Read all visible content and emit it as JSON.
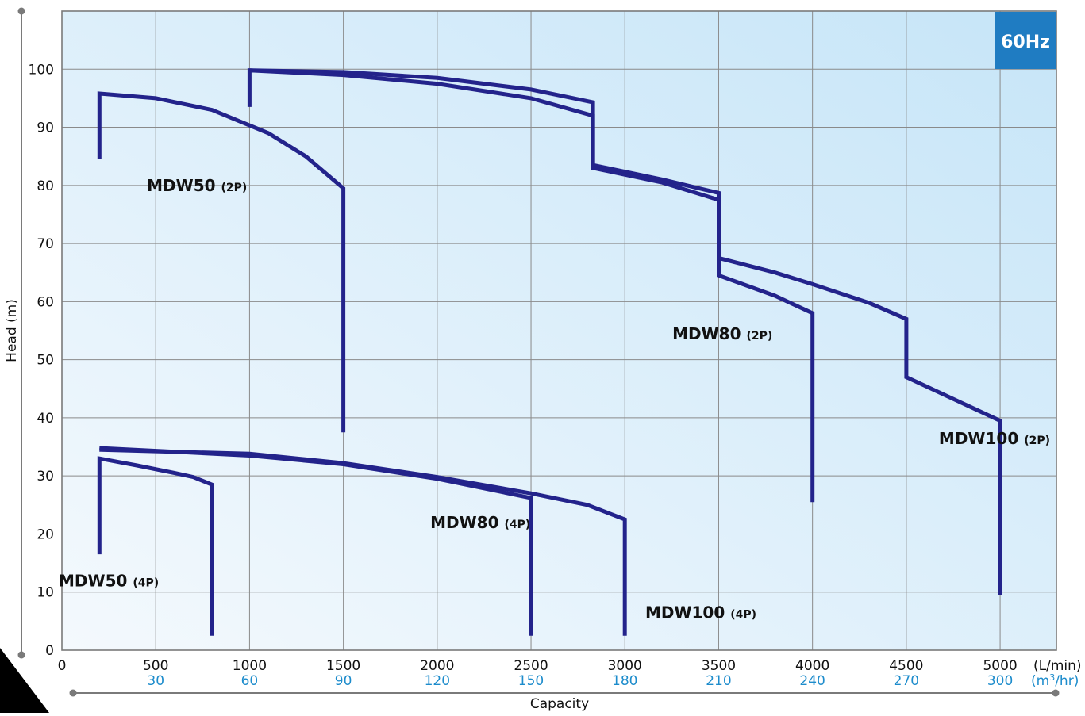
{
  "chart_data": {
    "type": "line",
    "badge": "60Hz",
    "xlabel": "Capacity",
    "ylabel": "Head (m)",
    "x_unit": "(L/min)",
    "x2_unit_prefix": "(m",
    "x2_unit_sup": "3",
    "x2_unit_suffix": "/hr)",
    "xlim": [
      0,
      5300
    ],
    "ylim": [
      0,
      110
    ],
    "x_ticks": [
      0,
      500,
      1000,
      1500,
      2000,
      2500,
      3000,
      3500,
      4000,
      4500,
      5000
    ],
    "x_tick_labels": [
      "0",
      "500",
      "1000",
      "1500",
      "2000",
      "2500",
      "3000",
      "3500",
      "4000",
      "4500",
      "5000"
    ],
    "x2_tick_labels": [
      "",
      "30",
      "60",
      "90",
      "120",
      "150",
      "180",
      "210",
      "240",
      "270",
      "300"
    ],
    "y_ticks": [
      0,
      10,
      20,
      30,
      40,
      50,
      60,
      70,
      80,
      90,
      100
    ],
    "y_tick_labels": [
      "0",
      "10",
      "20",
      "30",
      "40",
      "50",
      "60",
      "70",
      "80",
      "90",
      "100"
    ],
    "grid": true,
    "colors": {
      "curve": "#23238b",
      "grid": "#8a8a8a",
      "badge": "#1f7cc2",
      "x2_text": "#1d8ccc",
      "bg_left": "#f4f9fd",
      "bg_right": "#c6e5f8"
    },
    "series": [
      {
        "name": "MDW50",
        "suffix": "(2P)",
        "label_at": [
          720,
          79
        ],
        "points": [
          [
            200,
            84.5
          ],
          [
            200,
            95.8
          ],
          [
            500,
            95
          ],
          [
            800,
            93
          ],
          [
            1100,
            89
          ],
          [
            1300,
            85
          ],
          [
            1500,
            79.5
          ],
          [
            1500,
            37.5
          ]
        ]
      },
      {
        "name": "MDW50",
        "suffix": "(4P)",
        "label_at": [
          250,
          11
        ],
        "points": [
          [
            200,
            16.5
          ],
          [
            200,
            33
          ],
          [
            400,
            31.8
          ],
          [
            600,
            30.5
          ],
          [
            700,
            29.8
          ],
          [
            800,
            28.5
          ],
          [
            800,
            2.5
          ]
        ]
      },
      {
        "name": "MDW80",
        "suffix": "(2P)",
        "label_at": [
          3520,
          53.5
        ],
        "points": [
          [
            1000,
            93.5
          ],
          [
            1000,
            99.8
          ],
          [
            1500,
            99.5
          ],
          [
            2000,
            98.5
          ],
          [
            2500,
            96.5
          ],
          [
            2830,
            94.3
          ],
          [
            2830,
            83.5
          ],
          [
            3200,
            81
          ],
          [
            3500,
            78.7
          ],
          [
            3500,
            64.5
          ],
          [
            3800,
            61
          ],
          [
            4000,
            58
          ],
          [
            4000,
            25.5
          ]
        ]
      },
      {
        "name": "MDW80",
        "suffix": "(4P)",
        "label_at": [
          2230,
          21
        ],
        "points": [
          [
            200,
            34.8
          ],
          [
            1000,
            33.5
          ],
          [
            1500,
            32
          ],
          [
            2000,
            29.5
          ],
          [
            2500,
            26.2
          ],
          [
            2500,
            2.5
          ]
        ]
      },
      {
        "name": "MDW100",
        "suffix": "(2P)",
        "label_at": [
          4970,
          35.5
        ],
        "points": [
          [
            1000,
            99.8
          ],
          [
            1500,
            99
          ],
          [
            2000,
            97.5
          ],
          [
            2500,
            95
          ],
          [
            2830,
            92
          ],
          [
            2830,
            83
          ],
          [
            3200,
            80.5
          ],
          [
            3500,
            77.5
          ],
          [
            3500,
            67.5
          ],
          [
            3800,
            65
          ],
          [
            4000,
            63
          ],
          [
            4300,
            59.8
          ],
          [
            4500,
            57
          ],
          [
            4500,
            47
          ],
          [
            4800,
            42.5
          ],
          [
            5000,
            39.5
          ],
          [
            5000,
            9.5
          ]
        ]
      },
      {
        "name": "MDW100",
        "suffix": "(4P)",
        "label_at": [
          3405,
          5.5
        ],
        "points": [
          [
            200,
            34.5
          ],
          [
            1000,
            33.8
          ],
          [
            1500,
            32.2
          ],
          [
            2000,
            29.8
          ],
          [
            2500,
            27
          ],
          [
            2800,
            25
          ],
          [
            3000,
            22.5
          ],
          [
            3000,
            2.5
          ]
        ]
      }
    ]
  }
}
